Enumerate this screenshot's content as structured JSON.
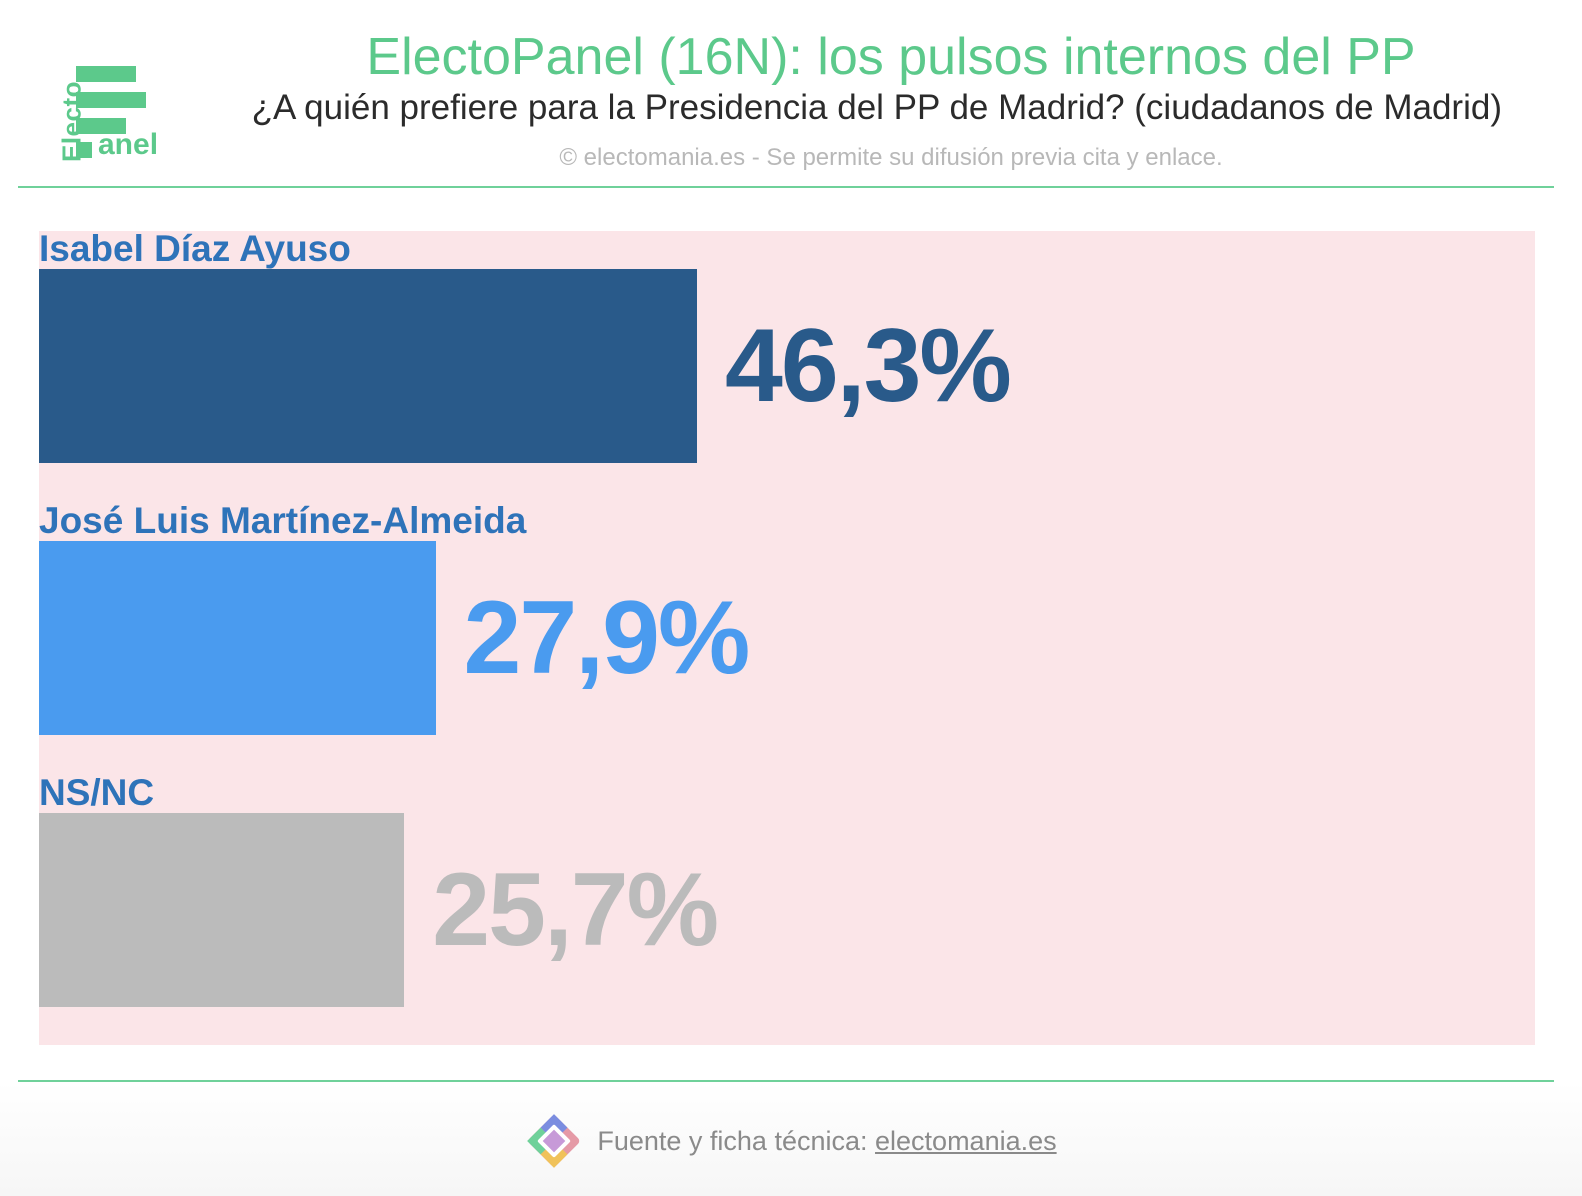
{
  "logo": {
    "top_text": "Electo",
    "bottom_text": "anel"
  },
  "header": {
    "title": "ElectoPanel (16N): los pulsos internos del PP",
    "subtitle": "¿A quién prefiere para la Presidencia del PP de Madrid? (ciudadanos de Madrid)",
    "copyright": "© electomania.es - Se permite su difusión previa cita y enlace."
  },
  "chart_data": {
    "type": "bar",
    "orientation": "horizontal",
    "title": "ElectoPanel (16N): los pulsos internos del PP",
    "subtitle": "¿A quién prefiere para la Presidencia del PP de Madrid? (ciudadanos de Madrid)",
    "categories": [
      "Isabel Díaz Ayuso",
      "José Luis Martínez-Almeida",
      "NS/NC"
    ],
    "values": [
      46.3,
      27.9,
      25.7
    ],
    "value_labels": [
      "46,3%",
      "27,9%",
      "25,7%"
    ],
    "colors": [
      "#295a8a",
      "#4a9bef",
      "#bbbbbb"
    ],
    "label_color": "#2e73b9",
    "panel_color": "#fbe5e8",
    "xlim": [
      0,
      100
    ],
    "grid": false,
    "legend": "none"
  },
  "footer": {
    "prefix": "Fuente y ficha técnica: ",
    "link": "electomania.es"
  },
  "colors": {
    "brand_green": "#5cc98b",
    "rule_green": "#6fd19a"
  }
}
